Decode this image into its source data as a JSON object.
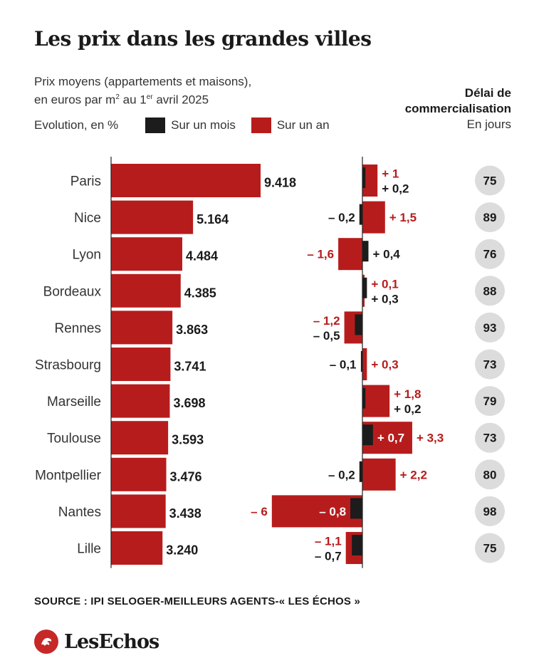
{
  "title": "Les prix dans les grandes villes",
  "subtitle_line1": "Prix moyens (appartements et maisons),",
  "subtitle_line2_a": "en euros par m",
  "subtitle_line2_sup1": "2",
  "subtitle_line2_b": " au 1",
  "subtitle_line2_sup2": "er",
  "subtitle_line2_c": " avril 2025",
  "legend": {
    "label": "Evolution, en %",
    "month": "Sur un mois",
    "year": "Sur un an"
  },
  "delay_header": {
    "line1": "Délai de",
    "line2": "commercialisation",
    "unit": "En jours"
  },
  "colors": {
    "red": "#b71c1c",
    "black": "#1c1c1c",
    "circle": "#dcdcdc"
  },
  "chart_data": {
    "type": "bar",
    "categories": [
      "Paris",
      "Nice",
      "Lyon",
      "Bordeaux",
      "Rennes",
      "Strasbourg",
      "Marseille",
      "Toulouse",
      "Montpellier",
      "Nantes",
      "Lille"
    ],
    "price_labels": [
      "9.418",
      "5.164",
      "4.484",
      "4.385",
      "3.863",
      "3.741",
      "3.698",
      "3.593",
      "3.476",
      "3.438",
      "3.240"
    ],
    "prices": [
      9418,
      5164,
      4484,
      4385,
      3863,
      3741,
      3698,
      3593,
      3476,
      3438,
      3240
    ],
    "series": [
      {
        "name": "Sur un an",
        "values": [
          1,
          1.5,
          -1.6,
          0.1,
          -1.2,
          0.3,
          1.8,
          3.3,
          2.2,
          -6,
          -1.1
        ],
        "labels": [
          "+ 1",
          "+ 1,5",
          "– 1,6",
          "+ 0,1",
          "– 1,2",
          "+ 0,3",
          "+ 1,8",
          "+ 3,3",
          "+ 2,2",
          "– 6",
          "– 1,1"
        ]
      },
      {
        "name": "Sur un mois",
        "values": [
          0.2,
          -0.2,
          0.4,
          0.3,
          -0.5,
          -0.1,
          0.2,
          0.7,
          -0.2,
          -0.8,
          -0.7
        ],
        "labels": [
          "+ 0,2",
          "– 0,2",
          "+ 0,4",
          "+ 0,3",
          "– 0,5",
          "– 0,1",
          "+ 0,2",
          "+ 0,7",
          "– 0,2",
          "– 0,8",
          "– 0,7"
        ]
      }
    ],
    "days": [
      75,
      89,
      76,
      88,
      93,
      73,
      79,
      73,
      80,
      98,
      75
    ]
  },
  "source": "SOURCE : IPI SELOGER-MEILLEURS AGENTS-« LES ÉCHOS »",
  "logo": "LesEchos"
}
